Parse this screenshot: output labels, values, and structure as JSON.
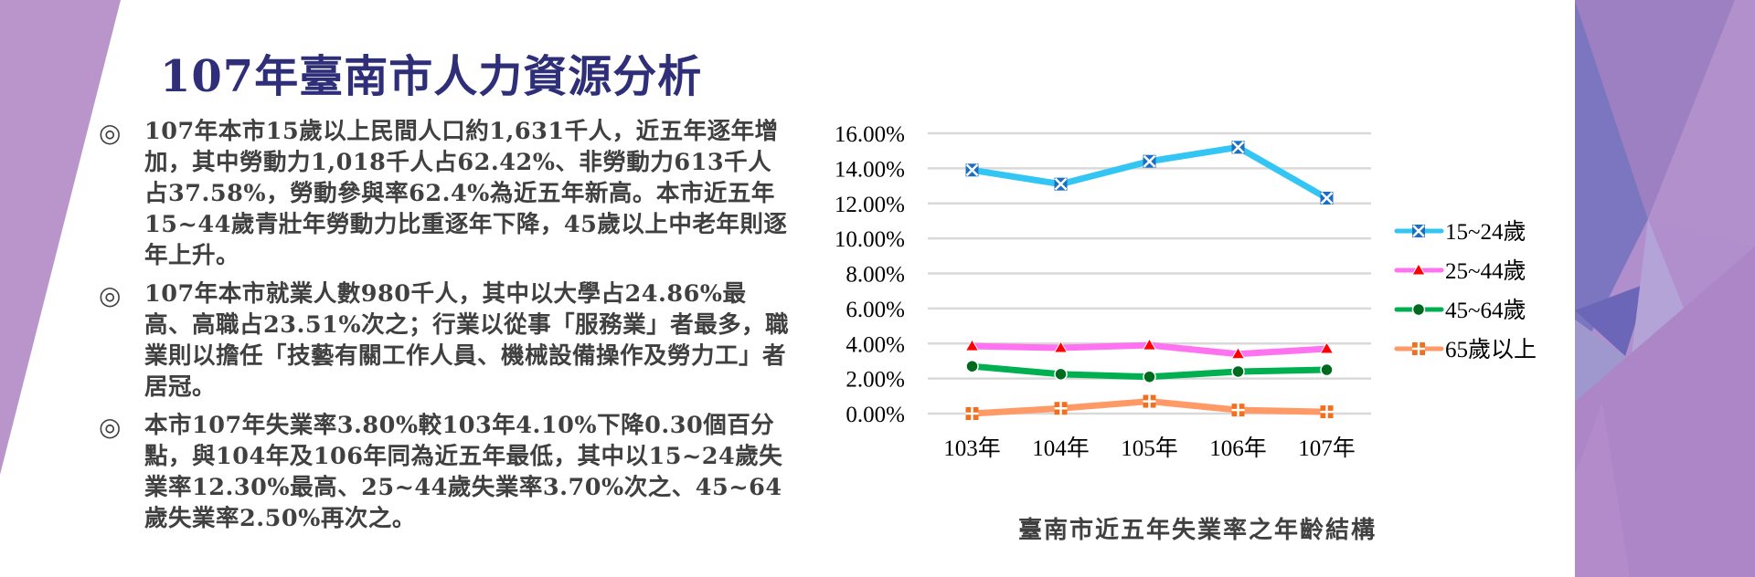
{
  "slide": {
    "title": "107年臺南市人力資源分析",
    "bullet_symbol": "◎",
    "bullets": [
      {
        "text": "107年本市15歲以上民間人口約1,631千人，近五年逐年增加，其中勞動力1,018千人占62.42%、非勞動力613千人占37.58%，勞動參與率62.4%為近五年新高。本市近五年15~44歲青壯年勞動力比重逐年下降，45歲以上中老年則逐年上升。"
      },
      {
        "text": "107年本市就業人數980千人，其中以大學占24.86%最高、高職占23.51%次之；行業以從事「服務業」者最多，職業則以擔任「技藝有關工作人員、機械設備操作及勞力工」者居冠。"
      },
      {
        "text": "本市107年失業率3.80%較103年4.10%下降0.30個百分點，與104年及106年同為近五年最低，其中以15~24歲失業率12.30%最高、25~44歲失業率3.70%次之、45~64歲失業率2.50%再次之。"
      }
    ]
  },
  "colors": {
    "title": "#2e2f78",
    "body_text": "#404040",
    "deco_left": "#b995cc",
    "gridline": "#d9d9d9"
  },
  "chart_data": {
    "type": "line",
    "title": "臺南市近五年失業率之年齡結構",
    "xlabel": "",
    "ylabel": "",
    "categories": [
      "103年",
      "104年",
      "105年",
      "106年",
      "107年"
    ],
    "y_ticks": [
      "0.00%",
      "2.00%",
      "4.00%",
      "6.00%",
      "8.00%",
      "10.00%",
      "12.00%",
      "14.00%",
      "16.00%"
    ],
    "ylim": [
      0,
      16
    ],
    "grid": true,
    "legend_position": "right",
    "series": [
      {
        "name": "15~24歲",
        "color": "#33c6f4",
        "marker": "x-square",
        "marker_color": "#1a6fc4",
        "values": [
          13.9,
          13.1,
          14.4,
          15.2,
          12.3
        ]
      },
      {
        "name": "25~44歲",
        "color": "#ff73f0",
        "marker": "triangle",
        "marker_color": "#ff0000",
        "values": [
          3.85,
          3.75,
          3.9,
          3.4,
          3.7
        ]
      },
      {
        "name": "45~64歲",
        "color": "#00b050",
        "marker": "circle",
        "marker_color": "#006b1f",
        "values": [
          2.7,
          2.25,
          2.1,
          2.4,
          2.5
        ]
      },
      {
        "name": "65歲以上",
        "color": "#ff9966",
        "marker": "square-cross",
        "marker_color": "#f07020",
        "values": [
          0.0,
          0.3,
          0.7,
          0.2,
          0.1
        ]
      }
    ]
  }
}
